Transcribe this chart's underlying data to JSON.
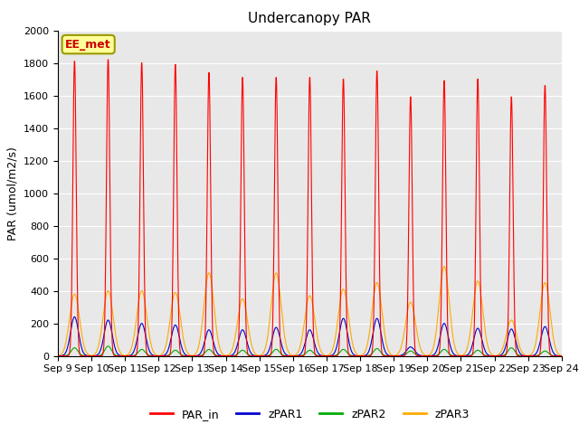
{
  "title": "Undercanopy PAR",
  "ylabel": "PAR (umol/m2/s)",
  "ylim": [
    0,
    2000
  ],
  "yticks": [
    0,
    200,
    400,
    600,
    800,
    1000,
    1200,
    1400,
    1600,
    1800,
    2000
  ],
  "background_color": "#e8e8e8",
  "annotation_text": "EE_met",
  "annotation_bg": "#ffff99",
  "annotation_border": "#999900",
  "series_colors": {
    "PAR_in": "#ff0000",
    "zPAR1": "#0000cc",
    "zPAR2": "#00aa00",
    "zPAR3": "#ffaa00"
  },
  "n_days": 15,
  "start_day": 9,
  "points_per_day": 96,
  "PAR_in_peaks": [
    1820,
    1830,
    1810,
    1800,
    1750,
    1720,
    1720,
    1720,
    1710,
    1760,
    1600,
    1700,
    1710,
    1600,
    1670
  ],
  "zPAR3_peaks": [
    380,
    400,
    400,
    390,
    510,
    350,
    510,
    370,
    410,
    450,
    330,
    550,
    460,
    220,
    450
  ],
  "zPAR1_peaks": [
    240,
    220,
    200,
    190,
    160,
    160,
    175,
    160,
    230,
    230,
    55,
    200,
    170,
    165,
    180
  ],
  "zPAR2_peaks": [
    50,
    60,
    40,
    35,
    40,
    35,
    40,
    35,
    40,
    45,
    30,
    40,
    35,
    50,
    30
  ],
  "par_in_sigma": 0.05,
  "zpar3_sigma": 0.15,
  "zpar1_sigma": 0.12,
  "zpar2_sigma": 0.1
}
